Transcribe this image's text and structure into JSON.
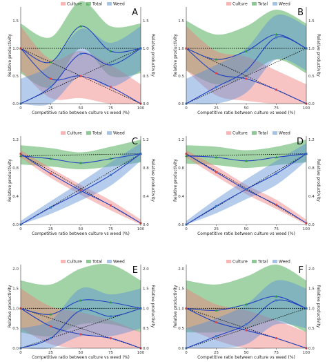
{
  "figure": {
    "legend": [
      "Culture",
      "Total",
      "Weed"
    ],
    "xlabel": "Competitive ratio between culture vs weed (%)",
    "ylabel_left": "Relative productivity",
    "ylabel_right": "Relative productivity"
  },
  "colors": {
    "culture": "#ef7b7b",
    "total": "#2e9e3a",
    "weed": "#5b8fd6",
    "line": "#1f3fbf",
    "dotted": "#111111",
    "grid": "#000000"
  },
  "chart_data": [
    {
      "panel": "A",
      "type": "line",
      "x": [
        0,
        25,
        50,
        75,
        100
      ],
      "x_ticks": [
        "0",
        "25",
        "50",
        "75",
        "100"
      ],
      "ylim": [
        0,
        1.75
      ],
      "y_ticks": [
        "0.0",
        "0.5",
        "1.0",
        "1.5"
      ],
      "series": [
        {
          "name": "Total",
          "values": [
            1.0,
            0.75,
            1.4,
            0.95,
            1.0
          ],
          "band": [
            [
              0.55,
              1.45
            ],
            [
              0.3,
              1.2
            ],
            [
              1.0,
              1.85
            ],
            [
              0.5,
              1.4
            ],
            [
              0.55,
              1.45
            ]
          ]
        },
        {
          "name": "Culture",
          "values": [
            1.0,
            0.45,
            0.5,
            0.3,
            0.0
          ],
          "band": [
            [
              0.6,
              1.4
            ],
            [
              0.1,
              0.8
            ],
            [
              0.1,
              0.95
            ],
            [
              0.0,
              0.7
            ],
            [
              0.0,
              0.35
            ]
          ]
        },
        {
          "name": "Weed",
          "values": [
            0.0,
            0.3,
            0.9,
            0.7,
            1.0
          ],
          "band": [
            [
              0.0,
              0.45
            ],
            [
              0.0,
              0.7
            ],
            [
              0.5,
              1.35
            ],
            [
              0.3,
              1.1
            ],
            [
              0.6,
              1.4
            ]
          ]
        }
      ]
    },
    {
      "panel": "B",
      "type": "line",
      "x": [
        0,
        25,
        50,
        75,
        100
      ],
      "x_ticks": [
        "0",
        "25",
        "50",
        "75",
        "100"
      ],
      "ylim": [
        0,
        1.75
      ],
      "y_ticks": [
        "0.0",
        "0.5",
        "1.0",
        "1.5"
      ],
      "series": [
        {
          "name": "Total",
          "values": [
            1.0,
            0.8,
            0.95,
            1.25,
            1.0
          ],
          "band": [
            [
              0.6,
              1.5
            ],
            [
              0.35,
              1.25
            ],
            [
              0.5,
              1.4
            ],
            [
              0.8,
              1.7
            ],
            [
              0.55,
              1.45
            ]
          ]
        },
        {
          "name": "Culture",
          "values": [
            1.0,
            0.55,
            0.45,
            0.25,
            0.0
          ],
          "band": [
            [
              0.6,
              1.4
            ],
            [
              0.15,
              0.95
            ],
            [
              0.05,
              0.85
            ],
            [
              0.0,
              0.6
            ],
            [
              0.0,
              0.35
            ]
          ]
        },
        {
          "name": "Weed",
          "values": [
            0.0,
            0.3,
            0.6,
            1.2,
            1.0
          ],
          "band": [
            [
              0.0,
              0.45
            ],
            [
              0.0,
              0.7
            ],
            [
              0.2,
              1.0
            ],
            [
              0.8,
              1.6
            ],
            [
              0.6,
              1.4
            ]
          ]
        }
      ]
    },
    {
      "panel": "C",
      "type": "line",
      "x": [
        0,
        25,
        50,
        75,
        100
      ],
      "x_ticks": [
        "0",
        "25",
        "50",
        "75",
        "100"
      ],
      "ylim": [
        0,
        1.25
      ],
      "y_ticks": [
        "0.0",
        "0.4",
        "0.8",
        "1.2"
      ],
      "series": [
        {
          "name": "Total",
          "values": [
            0.97,
            0.93,
            0.87,
            0.93,
            1.0
          ],
          "band": [
            [
              0.85,
              1.12
            ],
            [
              0.82,
              1.08
            ],
            [
              0.78,
              1.02
            ],
            [
              0.82,
              1.1
            ],
            [
              0.88,
              1.2
            ]
          ]
        },
        {
          "name": "Culture",
          "values": [
            1.0,
            0.72,
            0.48,
            0.27,
            0.02
          ],
          "band": [
            [
              0.95,
              1.05
            ],
            [
              0.66,
              0.8
            ],
            [
              0.42,
              0.56
            ],
            [
              0.2,
              0.34
            ],
            [
              0.0,
              0.07
            ]
          ]
        },
        {
          "name": "Weed",
          "values": [
            0.0,
            0.24,
            0.46,
            0.7,
            1.0
          ],
          "band": [
            [
              0.0,
              0.05
            ],
            [
              0.15,
              0.33
            ],
            [
              0.34,
              0.6
            ],
            [
              0.55,
              0.88
            ],
            [
              0.9,
              1.15
            ]
          ]
        }
      ]
    },
    {
      "panel": "D",
      "type": "line",
      "x": [
        0,
        25,
        50,
        75,
        100
      ],
      "x_ticks": [
        "0",
        "25",
        "50",
        "75",
        "100"
      ],
      "ylim": [
        0,
        1.25
      ],
      "y_ticks": [
        "0.0",
        "0.4",
        "0.8",
        "1.2"
      ],
      "series": [
        {
          "name": "Total",
          "values": [
            0.97,
            0.95,
            0.9,
            0.95,
            1.0
          ],
          "band": [
            [
              0.86,
              1.12
            ],
            [
              0.84,
              1.1
            ],
            [
              0.8,
              1.05
            ],
            [
              0.84,
              1.1
            ],
            [
              0.88,
              1.2
            ]
          ]
        },
        {
          "name": "Culture",
          "values": [
            1.0,
            0.74,
            0.49,
            0.28,
            0.02
          ],
          "band": [
            [
              0.95,
              1.05
            ],
            [
              0.68,
              0.82
            ],
            [
              0.43,
              0.56
            ],
            [
              0.22,
              0.35
            ],
            [
              0.0,
              0.07
            ]
          ]
        },
        {
          "name": "Weed",
          "values": [
            0.0,
            0.26,
            0.5,
            0.72,
            1.0
          ],
          "band": [
            [
              0.0,
              0.05
            ],
            [
              0.16,
              0.36
            ],
            [
              0.36,
              0.64
            ],
            [
              0.56,
              0.9
            ],
            [
              0.9,
              1.15
            ]
          ]
        }
      ]
    },
    {
      "panel": "E",
      "type": "line",
      "x": [
        0,
        25,
        50,
        75,
        100
      ],
      "x_ticks": [
        "0",
        "25",
        "50",
        "75",
        "100"
      ],
      "ylim": [
        0,
        2.1
      ],
      "y_ticks": [
        "0.0",
        "0.5",
        "1.0",
        "1.5",
        "2.0"
      ],
      "series": [
        {
          "name": "Total",
          "values": [
            1.0,
            0.85,
            1.2,
            1.15,
            1.0
          ],
          "band": [
            [
              0.4,
              1.7
            ],
            [
              0.3,
              1.6
            ],
            [
              0.6,
              2.0
            ],
            [
              0.6,
              2.1
            ],
            [
              0.4,
              1.7
            ]
          ]
        },
        {
          "name": "Culture",
          "values": [
            1.0,
            0.55,
            0.35,
            0.25,
            0.0
          ],
          "band": [
            [
              0.5,
              1.5
            ],
            [
              0.1,
              1.05
            ],
            [
              0.0,
              0.9
            ],
            [
              0.0,
              0.7
            ],
            [
              0.0,
              0.4
            ]
          ]
        },
        {
          "name": "Weed",
          "values": [
            0.0,
            0.25,
            0.95,
            0.8,
            1.0
          ],
          "band": [
            [
              0.0,
              0.5
            ],
            [
              0.0,
              0.7
            ],
            [
              0.3,
              1.5
            ],
            [
              0.3,
              1.35
            ],
            [
              0.5,
              1.5
            ]
          ]
        }
      ]
    },
    {
      "panel": "F",
      "type": "line",
      "x": [
        0,
        25,
        50,
        75,
        100
      ],
      "x_ticks": [
        "0",
        "25",
        "50",
        "75",
        "100"
      ],
      "ylim": [
        0,
        2.1
      ],
      "y_ticks": [
        "0.0",
        "0.5",
        "1.0",
        "1.5",
        "2.0"
      ],
      "series": [
        {
          "name": "Total",
          "values": [
            1.0,
            0.95,
            1.1,
            1.3,
            1.0
          ],
          "band": [
            [
              0.4,
              1.7
            ],
            [
              0.4,
              1.6
            ],
            [
              0.5,
              1.8
            ],
            [
              0.7,
              2.1
            ],
            [
              0.4,
              1.7
            ]
          ]
        },
        {
          "name": "Culture",
          "values": [
            1.0,
            0.65,
            0.45,
            0.25,
            0.0
          ],
          "band": [
            [
              0.5,
              1.5
            ],
            [
              0.2,
              1.1
            ],
            [
              0.0,
              0.95
            ],
            [
              0.0,
              0.7
            ],
            [
              0.0,
              0.4
            ]
          ]
        },
        {
          "name": "Weed",
          "values": [
            0.0,
            0.3,
            0.6,
            1.2,
            1.0
          ],
          "band": [
            [
              0.0,
              0.5
            ],
            [
              0.0,
              0.75
            ],
            [
              0.1,
              1.1
            ],
            [
              0.6,
              1.7
            ],
            [
              0.5,
              1.5
            ]
          ]
        }
      ]
    }
  ]
}
